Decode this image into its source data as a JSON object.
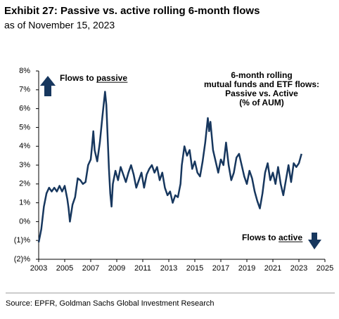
{
  "chart_data": {
    "type": "line",
    "title": "Exhibit 27: Passive vs. active rolling 6-month flows",
    "subtitle": "as of November 15, 2023",
    "source": "Source: EPFR, Goldman Sachs Global Investment Research",
    "annotations": {
      "passive": "Flows to passive",
      "active": "Flows to active",
      "legend": [
        "6-month rolling",
        "mutual funds and ETF flows:",
        "Passive vs. Active",
        "(% of AUM)"
      ]
    },
    "xlim": [
      2003,
      2025
    ],
    "xticks": [
      2003,
      2005,
      2007,
      2009,
      2011,
      2013,
      2015,
      2017,
      2019,
      2021,
      2023,
      2025
    ],
    "ylim": [
      -2,
      8
    ],
    "yticks": [
      {
        "value": -2,
        "label": "(2)%"
      },
      {
        "value": -1,
        "label": "(1)%"
      },
      {
        "value": 0,
        "label": "0%"
      },
      {
        "value": 1,
        "label": "1%"
      },
      {
        "value": 2,
        "label": "2%"
      },
      {
        "value": 3,
        "label": "3%"
      },
      {
        "value": 4,
        "label": "4%"
      },
      {
        "value": 5,
        "label": "5%"
      },
      {
        "value": 6,
        "label": "6%"
      },
      {
        "value": 7,
        "label": "7%"
      },
      {
        "value": 8,
        "label": "8%"
      }
    ],
    "grid": false,
    "series": [
      {
        "color": "#17375e",
        "x": [
          2003.0,
          2003.2,
          2003.4,
          2003.6,
          2003.8,
          2004.0,
          2004.2,
          2004.4,
          2004.6,
          2004.8,
          2005.0,
          2005.2,
          2005.3,
          2005.4,
          2005.6,
          2005.8,
          2006.0,
          2006.2,
          2006.4,
          2006.6,
          2006.8,
          2007.0,
          2007.1,
          2007.2,
          2007.3,
          2007.5,
          2007.7,
          2007.9,
          2008.1,
          2008.2,
          2008.3,
          2008.4,
          2008.5,
          2008.6,
          2008.7,
          2008.9,
          2009.1,
          2009.3,
          2009.5,
          2009.7,
          2009.9,
          2010.1,
          2010.3,
          2010.5,
          2010.7,
          2010.9,
          2011.1,
          2011.3,
          2011.5,
          2011.7,
          2011.9,
          2012.1,
          2012.3,
          2012.5,
          2012.7,
          2012.9,
          2013.1,
          2013.3,
          2013.5,
          2013.7,
          2013.9,
          2014.0,
          2014.2,
          2014.4,
          2014.6,
          2014.8,
          2015.0,
          2015.2,
          2015.4,
          2015.6,
          2015.8,
          2016.0,
          2016.1,
          2016.2,
          2016.4,
          2016.6,
          2016.8,
          2017.0,
          2017.2,
          2017.4,
          2017.6,
          2017.8,
          2018.0,
          2018.2,
          2018.4,
          2018.6,
          2018.8,
          2019.0,
          2019.2,
          2019.4,
          2019.6,
          2019.8,
          2020.0,
          2020.2,
          2020.4,
          2020.6,
          2020.8,
          2021.0,
          2021.2,
          2021.4,
          2021.6,
          2021.8,
          2022.0,
          2022.2,
          2022.4,
          2022.6,
          2022.8,
          2023.0,
          2023.2
        ],
        "values": [
          -1.1,
          -0.4,
          0.8,
          1.5,
          1.8,
          1.6,
          1.8,
          1.6,
          1.9,
          1.6,
          1.9,
          1.2,
          0.7,
          0.0,
          0.9,
          1.3,
          2.3,
          2.2,
          2.0,
          2.1,
          3.0,
          3.3,
          4.0,
          4.8,
          3.8,
          3.2,
          4.2,
          5.6,
          6.9,
          6.2,
          4.5,
          2.8,
          1.5,
          0.8,
          2.0,
          2.7,
          2.2,
          2.9,
          2.5,
          2.1,
          2.6,
          3.0,
          2.5,
          1.8,
          2.2,
          2.6,
          1.8,
          2.5,
          2.8,
          3.0,
          2.6,
          2.9,
          2.2,
          2.6,
          1.8,
          1.4,
          1.6,
          1.0,
          1.4,
          1.3,
          2.0,
          3.0,
          4.0,
          3.5,
          3.8,
          2.8,
          3.2,
          2.6,
          2.4,
          3.2,
          4.2,
          5.5,
          4.8,
          5.3,
          3.8,
          3.2,
          2.6,
          3.3,
          3.0,
          4.2,
          3.0,
          2.2,
          2.6,
          3.4,
          3.6,
          3.0,
          2.4,
          2.0,
          2.7,
          2.3,
          1.6,
          1.1,
          0.7,
          1.5,
          2.6,
          3.1,
          2.2,
          2.6,
          2.0,
          2.9,
          2.0,
          1.4,
          2.2,
          3.0,
          2.1,
          3.1,
          2.9,
          3.1,
          3.6
        ]
      }
    ]
  }
}
